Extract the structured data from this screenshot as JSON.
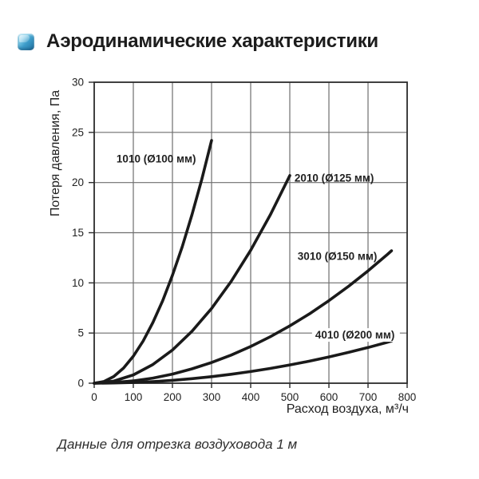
{
  "header": {
    "title": "Аэродинамические характеристики"
  },
  "caption": {
    "text": "Данные для отрезка воздуховода 1 м"
  },
  "colors": {
    "accent_blue_light": "#7ecbe8",
    "accent_blue_dark": "#1e6f9e",
    "curve": "#1a1a1a",
    "grid": "#6e6e6e",
    "frame": "#2b2b2b",
    "text": "#1f1f1f",
    "label": "#222222",
    "background": "#ffffff"
  },
  "chart_data": {
    "type": "line",
    "title": "Аэродинамические характеристики",
    "xlabel": "Расход воздуха, м³/ч",
    "ylabel": "Потеря давления, Па",
    "xlim": [
      0,
      800
    ],
    "ylim": [
      0,
      30
    ],
    "x_ticks": [
      0,
      100,
      200,
      300,
      400,
      500,
      600,
      700,
      800
    ],
    "y_ticks": [
      0,
      5,
      10,
      15,
      20,
      25,
      30
    ],
    "grid": true,
    "legend_position": "inline-labels",
    "footnote": "Данные для отрезка воздуховода 1 м",
    "series": [
      {
        "name": "1010 (Ø100 мм)",
        "x": [
          0,
          25,
          50,
          75,
          100,
          125,
          150,
          175,
          200,
          225,
          250,
          275,
          300
        ],
        "y": [
          0,
          0.17,
          0.67,
          1.51,
          2.69,
          4.2,
          6.05,
          8.23,
          10.76,
          13.61,
          16.81,
          20.33,
          24.2
        ],
        "label_x": 57,
        "label_y": 22.0,
        "label_bg": false
      },
      {
        "name": "2010 (Ø125 мм)",
        "x": [
          0,
          50,
          100,
          150,
          200,
          250,
          300,
          350,
          400,
          450,
          500
        ],
        "y": [
          0,
          0.21,
          0.83,
          1.86,
          3.31,
          5.18,
          7.45,
          10.14,
          13.25,
          16.77,
          20.7
        ],
        "label_x": 512,
        "label_y": 20.1,
        "label_bg": false
      },
      {
        "name": "3010 (Ø150 мм)",
        "x": [
          0,
          50,
          100,
          150,
          200,
          250,
          300,
          350,
          400,
          450,
          500,
          550,
          600,
          650,
          700,
          750,
          760
        ],
        "y": [
          0,
          0.06,
          0.23,
          0.51,
          0.91,
          1.43,
          2.06,
          2.8,
          3.66,
          4.63,
          5.71,
          6.91,
          8.23,
          9.65,
          11.2,
          12.85,
          13.2
        ],
        "label_x": 520,
        "label_y": 12.3,
        "label_bg": false
      },
      {
        "name": "4010 (Ø200 мм)",
        "x": [
          0,
          50,
          100,
          150,
          200,
          250,
          300,
          350,
          400,
          450,
          500,
          550,
          600,
          650,
          700,
          750,
          760
        ],
        "y": [
          0,
          0.02,
          0.07,
          0.16,
          0.29,
          0.45,
          0.65,
          0.89,
          1.16,
          1.47,
          1.82,
          2.2,
          2.62,
          3.07,
          3.56,
          4.09,
          4.2
        ],
        "label_x": 565,
        "label_y": 4.45,
        "label_bg": true
      }
    ]
  }
}
